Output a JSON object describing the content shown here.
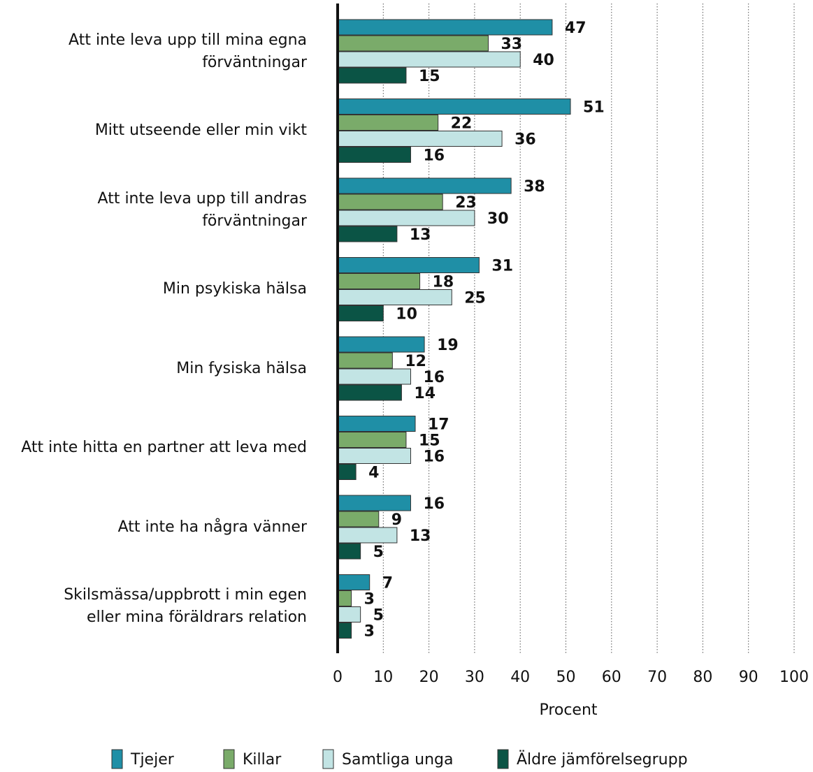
{
  "chart_data": {
    "type": "hbar_grouped",
    "categories": [
      "Att inte leva upp till mina egna\nförväntningar",
      "Mitt utseende eller min vikt",
      "Att inte leva upp till andras\nförväntningar",
      "Min psykiska hälsa",
      "Min fysiska hälsa",
      "Att inte hitta en partner att leva med",
      "Att inte ha några vänner",
      "Skilsmässa/uppbrott i min egen\neller mina föräldrars relation"
    ],
    "series": [
      {
        "name": "Tjejer",
        "color": "#1f8fa6",
        "values": [
          47,
          51,
          38,
          31,
          19,
          17,
          16,
          7
        ]
      },
      {
        "name": "Killar",
        "color": "#7aab6a",
        "values": [
          33,
          22,
          23,
          18,
          12,
          15,
          9,
          3
        ]
      },
      {
        "name": "Samtliga unga",
        "color": "#c2e4e4",
        "values": [
          40,
          36,
          30,
          25,
          16,
          16,
          13,
          5
        ]
      },
      {
        "name": "Äldre jämförelsegrupp",
        "color": "#0b5445",
        "values": [
          15,
          16,
          13,
          10,
          14,
          4,
          5,
          3
        ]
      }
    ],
    "xlabel": "Procent",
    "xlim": [
      0,
      100
    ],
    "xticks": [
      0,
      10,
      20,
      30,
      40,
      50,
      60,
      70,
      80,
      90,
      100
    ],
    "grid": true,
    "legend": "bottom"
  }
}
